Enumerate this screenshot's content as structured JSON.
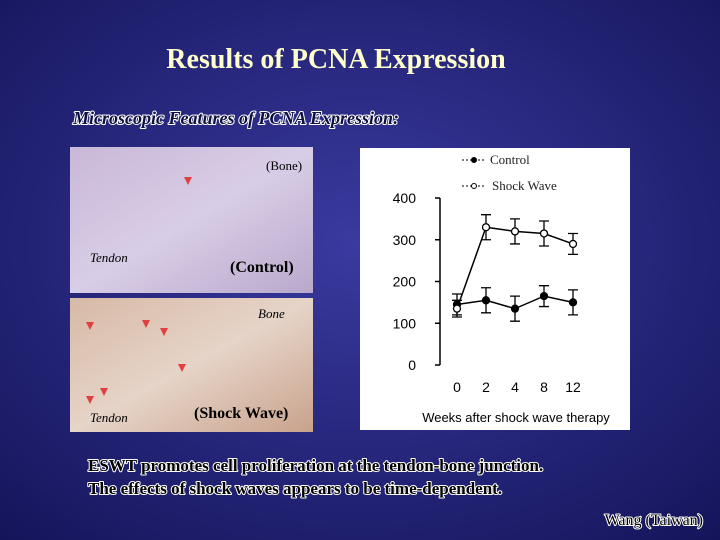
{
  "title": "Results of PCNA Expression",
  "subtitle": "Microscopic Features of PCNA Expression:",
  "images": [
    {
      "bone": "(Bone)",
      "tendon": "Tendon",
      "group": "(Control)"
    },
    {
      "bone": "Bone",
      "tendon": "Tendon",
      "group": "(Shock Wave)"
    }
  ],
  "chart_data": {
    "type": "line",
    "xlabel": "Weeks after shock wave therapy",
    "categories": [
      "0",
      "2",
      "4",
      "8",
      "12"
    ],
    "series": [
      {
        "name": "Control",
        "color": "#000000",
        "marker_fill": "#000000",
        "values": [
          145,
          155,
          135,
          165,
          150
        ],
        "errors": [
          25,
          30,
          30,
          25,
          30
        ]
      },
      {
        "name": "Shock Wave",
        "color": "#000000",
        "marker_fill": "#ffffff",
        "values": [
          135,
          330,
          320,
          315,
          290
        ],
        "errors": [
          20,
          30,
          30,
          30,
          25
        ]
      }
    ],
    "ylim": [
      0,
      400
    ],
    "yticks": [
      0,
      100,
      200,
      300,
      400
    ]
  },
  "notes": [
    "ESWT promotes cell proliferation at the tendon-bone junction.",
    "The effects of shock waves appears to be time-dependent."
  ],
  "credit": "Wang (Taiwan)"
}
